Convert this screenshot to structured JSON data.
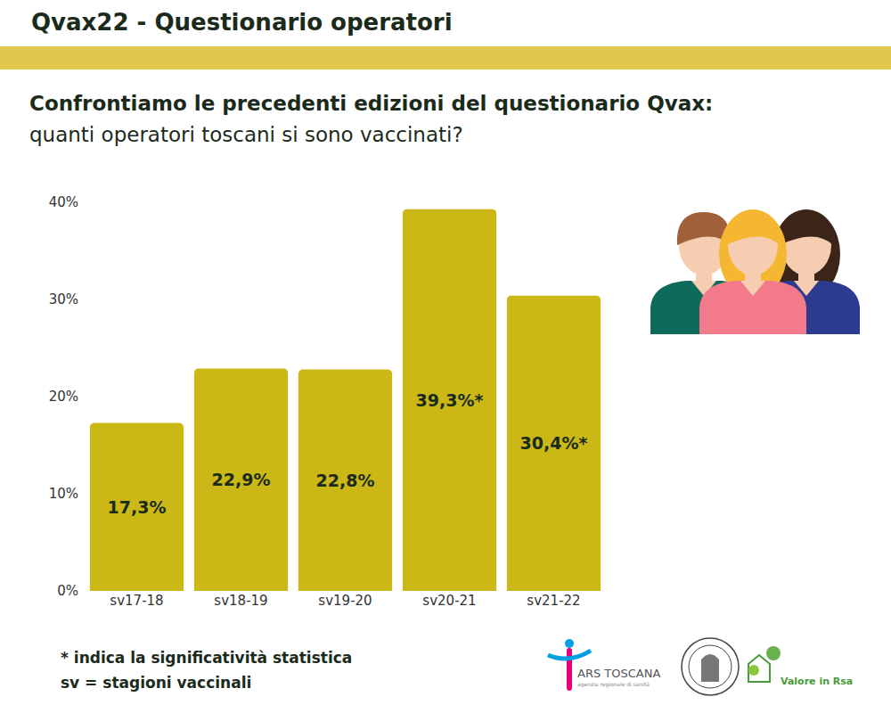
{
  "header": {
    "title": "Qvax22 - Questionario operatori"
  },
  "chart_data": {
    "type": "bar",
    "title": "Confrontiamo le precedenti edizioni del questionario Qvax:",
    "subtitle": "quanti operatori toscani si sono vaccinati?",
    "categories": [
      "sv17-18",
      "sv18-19",
      "sv19-20",
      "sv20-21",
      "sv21-22"
    ],
    "values": [
      17.3,
      22.9,
      22.8,
      39.3,
      30.4
    ],
    "value_labels": [
      "17,3%",
      "22,9%",
      "22,8%",
      "39,3%*",
      "30,4%*"
    ],
    "color": "#cbb817",
    "ylim": [
      0,
      40
    ],
    "yticks": [
      {
        "value": 0,
        "label": "0%"
      },
      {
        "value": 10,
        "label": "10%"
      },
      {
        "value": 20,
        "label": "20%"
      },
      {
        "value": 30,
        "label": "30%"
      },
      {
        "value": 40,
        "label": "40%"
      }
    ],
    "grid": false,
    "data_labels": true
  },
  "notes": [
    "* indica la significatività statistica",
    "sv = stagioni vaccinali"
  ],
  "logos": [
    "ARS TOSCANA",
    "agenzia regionale di sanità",
    "Valore in Rsa"
  ]
}
